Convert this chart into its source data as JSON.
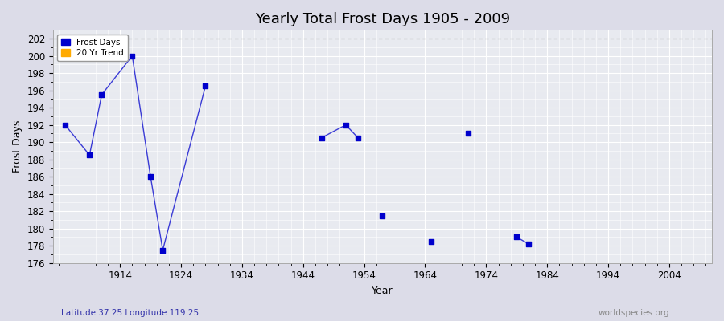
{
  "title": "Yearly Total Frost Days 1905 - 2009",
  "xlabel": "Year",
  "ylabel": "Frost Days",
  "subtitle_left": "Latitude 37.25 Longitude 119.25",
  "subtitle_right": "worldspecies.org",
  "ylim": [
    176,
    203
  ],
  "xlim": [
    1903,
    2011
  ],
  "yticks": [
    176,
    178,
    180,
    182,
    184,
    186,
    188,
    190,
    192,
    194,
    196,
    198,
    200,
    202
  ],
  "xticks": [
    1914,
    1924,
    1934,
    1944,
    1954,
    1964,
    1974,
    1984,
    1994,
    2004
  ],
  "hline_y": 202,
  "segments": [
    [
      [
        1905,
        192
      ],
      [
        1909,
        188.5
      ]
    ],
    [
      [
        1909,
        188.5
      ],
      [
        1911,
        195.5
      ]
    ],
    [
      [
        1911,
        195.5
      ],
      [
        1916,
        200
      ]
    ],
    [
      [
        1916,
        200
      ],
      [
        1919,
        186
      ]
    ],
    [
      [
        1919,
        186
      ],
      [
        1921,
        177.5
      ]
    ],
    [
      [
        1921,
        177.5
      ],
      [
        1928,
        196.5
      ]
    ],
    [
      [
        1947,
        190.5
      ],
      [
        1951,
        192
      ]
    ],
    [
      [
        1951,
        192
      ],
      [
        1953,
        190.5
      ]
    ],
    [
      [
        1957,
        181.5
      ]
    ],
    [
      [
        1965,
        178.5
      ]
    ],
    [
      [
        1971,
        191
      ]
    ],
    [
      [
        1979,
        179
      ],
      [
        1981,
        178.2
      ]
    ]
  ],
  "frost_days_x": [
    1905,
    1909,
    1911,
    1916,
    1919,
    1921,
    1928,
    1947,
    1951,
    1953,
    1957,
    1965,
    1971,
    1979,
    1981
  ],
  "frost_days_y": [
    192,
    188.5,
    195.5,
    200,
    186,
    177.5,
    196.5,
    190.5,
    192,
    190.5,
    181.5,
    178.5,
    191,
    179,
    178.2
  ],
  "line_segments": [
    {
      "x": [
        1905,
        1909,
        1911,
        1916,
        1919,
        1921
      ],
      "y": [
        192,
        188.5,
        195.5,
        200,
        186,
        177.5
      ]
    },
    {
      "x": [
        1921,
        1928
      ],
      "y": [
        177.5,
        196.5
      ]
    },
    {
      "x": [
        1947,
        1951,
        1953
      ],
      "y": [
        190.5,
        192,
        190.5
      ]
    },
    {
      "x": [
        1979,
        1981
      ],
      "y": [
        179,
        178.2
      ]
    }
  ],
  "frost_days_color": "#0000cc",
  "trend_color": "#ffaa00",
  "plot_bg_color": "#e8eaf0",
  "dashed_line_color": "#555555",
  "marker_size": 16,
  "line_width": 1.0,
  "title_fontsize": 13,
  "axis_fontsize": 9,
  "tick_fontsize": 8.5
}
